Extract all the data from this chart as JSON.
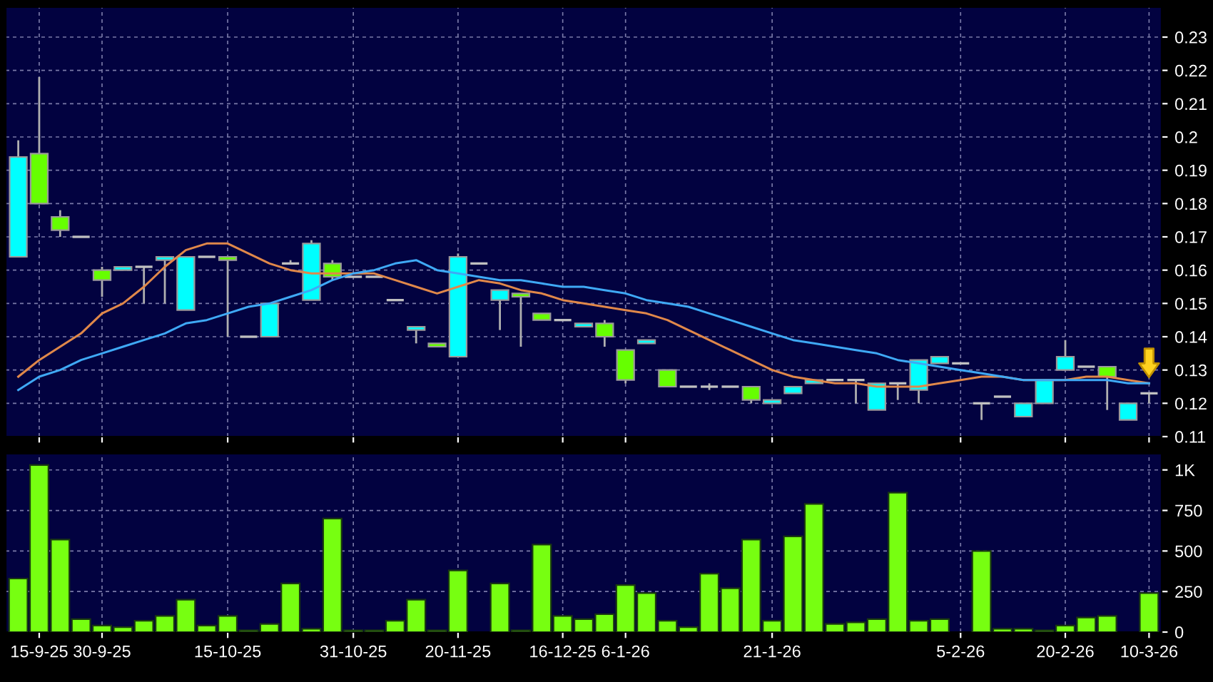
{
  "chart_data": [
    {
      "type": "candlestick",
      "categories": [
        null,
        null,
        null,
        null,
        null,
        null,
        null,
        null,
        null,
        null,
        null,
        null,
        null,
        null,
        null,
        null,
        null,
        null,
        null,
        null,
        null,
        null,
        null,
        null,
        null,
        null,
        null,
        null,
        null,
        null,
        null,
        null,
        null,
        null,
        null,
        null,
        null,
        null,
        null,
        null,
        null,
        null,
        null,
        null,
        null,
        null,
        null,
        null,
        null,
        null,
        null,
        null,
        null,
        null,
        null
      ],
      "ohlc": [
        [
          0.164,
          0.199,
          0.164,
          0.194
        ],
        [
          0.195,
          0.218,
          0.18,
          0.18
        ],
        [
          0.176,
          0.178,
          0.17,
          0.172
        ],
        [
          0.17,
          0.17,
          0.17,
          0.17
        ],
        [
          0.16,
          0.161,
          0.152,
          0.157
        ],
        [
          0.16,
          0.161,
          0.16,
          0.161
        ],
        [
          0.161,
          0.161,
          0.15,
          0.161
        ],
        [
          0.163,
          0.164,
          0.15,
          0.164
        ],
        [
          0.148,
          0.164,
          0.148,
          0.164
        ],
        [
          0.164,
          0.164,
          0.164,
          0.164
        ],
        [
          0.164,
          0.164,
          0.14,
          0.163
        ],
        [
          0.14,
          0.14,
          0.14,
          0.14
        ],
        [
          0.14,
          0.15,
          0.14,
          0.15
        ],
        [
          0.162,
          0.163,
          0.162,
          0.162
        ],
        [
          0.151,
          0.169,
          0.151,
          0.168
        ],
        [
          0.162,
          0.163,
          0.157,
          0.158
        ],
        [
          0.158,
          0.158,
          0.158,
          0.158
        ],
        [
          0.158,
          0.158,
          0.158,
          0.158
        ],
        [
          0.151,
          0.151,
          0.151,
          0.151
        ],
        [
          0.142,
          0.143,
          0.138,
          0.143
        ],
        [
          0.138,
          0.138,
          0.137,
          0.137
        ],
        [
          0.134,
          0.165,
          0.134,
          0.164
        ],
        [
          0.162,
          0.162,
          0.162,
          0.162
        ],
        [
          0.151,
          0.154,
          0.142,
          0.154
        ],
        [
          0.153,
          0.153,
          0.137,
          0.152
        ],
        [
          0.147,
          0.147,
          0.145,
          0.145
        ],
        [
          0.145,
          0.145,
          0.145,
          0.145
        ],
        [
          0.143,
          0.144,
          0.143,
          0.144
        ],
        [
          0.144,
          0.145,
          0.137,
          0.14
        ],
        [
          0.136,
          0.136,
          0.126,
          0.127
        ],
        [
          0.138,
          0.139,
          0.138,
          0.139
        ],
        [
          0.13,
          0.13,
          0.125,
          0.125
        ],
        [
          0.125,
          0.125,
          0.125,
          0.125
        ],
        [
          0.125,
          0.126,
          0.124,
          0.125
        ],
        [
          0.125,
          0.125,
          0.125,
          0.125
        ],
        [
          0.125,
          0.125,
          0.12,
          0.121
        ],
        [
          0.12,
          0.121,
          0.12,
          0.121
        ],
        [
          0.123,
          0.125,
          0.123,
          0.125
        ],
        [
          0.126,
          0.127,
          0.126,
          0.127
        ],
        [
          0.127,
          0.127,
          0.127,
          0.127
        ],
        [
          0.127,
          0.127,
          0.12,
          0.127
        ],
        [
          0.118,
          0.126,
          0.118,
          0.126
        ],
        [
          0.126,
          0.126,
          0.121,
          0.126
        ],
        [
          0.124,
          0.133,
          0.12,
          0.133
        ],
        [
          0.132,
          0.134,
          0.132,
          0.134
        ],
        [
          0.132,
          0.132,
          0.132,
          0.132
        ],
        [
          0.12,
          0.12,
          0.115,
          0.12
        ],
        [
          0.122,
          0.122,
          0.122,
          0.122
        ],
        [
          0.116,
          0.12,
          0.116,
          0.12
        ],
        [
          0.12,
          0.127,
          0.12,
          0.127
        ],
        [
          0.13,
          0.139,
          0.13,
          0.134
        ],
        [
          0.131,
          0.131,
          0.131,
          0.131
        ],
        [
          0.131,
          0.131,
          0.118,
          0.128
        ],
        [
          0.115,
          0.12,
          0.115,
          0.12
        ],
        [
          0.123,
          0.123,
          0.12,
          0.123
        ]
      ],
      "colors": [
        "#00ffff",
        "#66ff00",
        "#66ff00",
        "#c0c0c0",
        "#66ff00",
        "#00ffff",
        "#c0c0c0",
        "#00ffff",
        "#00ffff",
        "#c0c0c0",
        "#66ff00",
        "#c0c0c0",
        "#00ffff",
        "#c0c0c0",
        "#00ffff",
        "#66ff00",
        "#c0c0c0",
        "#c0c0c0",
        "#c0c0c0",
        "#00ffff",
        "#66ff00",
        "#00ffff",
        "#c0c0c0",
        "#00ffff",
        "#66ff00",
        "#66ff00",
        "#c0c0c0",
        "#00ffff",
        "#66ff00",
        "#66ff00",
        "#00ffff",
        "#66ff00",
        "#c0c0c0",
        "#c0c0c0",
        "#c0c0c0",
        "#66ff00",
        "#00ffff",
        "#00ffff",
        "#00ffff",
        "#c0c0c0",
        "#c0c0c0",
        "#00ffff",
        "#c0c0c0",
        "#00ffff",
        "#00ffff",
        "#c0c0c0",
        "#c0c0c0",
        "#c0c0c0",
        "#00ffff",
        "#00ffff",
        "#00ffff",
        "#c0c0c0",
        "#66ff00",
        "#00ffff",
        "#c0c0c0"
      ],
      "series": [
        {
          "type": "line",
          "color": "#e0884a",
          "values": [
            0.128,
            0.133,
            0.137,
            0.141,
            0.147,
            0.15,
            0.155,
            0.161,
            0.166,
            0.168,
            0.168,
            0.165,
            0.162,
            0.16,
            0.159,
            0.159,
            0.159,
            0.159,
            0.157,
            0.155,
            0.153,
            0.155,
            0.157,
            0.156,
            0.154,
            0.153,
            0.151,
            0.15,
            0.149,
            0.148,
            0.147,
            0.145,
            0.142,
            0.139,
            0.136,
            0.133,
            0.13,
            0.128,
            0.127,
            0.126,
            0.126,
            0.125,
            0.125,
            0.125,
            0.126,
            0.127,
            0.128,
            0.128,
            0.127,
            0.127,
            0.127,
            0.128,
            0.128,
            0.127,
            0.126
          ]
        },
        {
          "type": "line",
          "color": "#3fa9f5",
          "values": [
            0.124,
            0.128,
            0.13,
            0.133,
            0.135,
            0.137,
            0.139,
            0.141,
            0.144,
            0.145,
            0.147,
            0.149,
            0.15,
            0.152,
            0.154,
            0.157,
            0.159,
            0.16,
            0.162,
            0.163,
            0.16,
            0.159,
            0.158,
            0.157,
            0.157,
            0.156,
            0.155,
            0.155,
            0.154,
            0.153,
            0.151,
            0.15,
            0.149,
            0.147,
            0.145,
            0.143,
            0.141,
            0.139,
            0.138,
            0.137,
            0.136,
            0.135,
            0.133,
            0.132,
            0.131,
            0.13,
            0.129,
            0.128,
            0.127,
            0.127,
            0.127,
            0.127,
            0.127,
            0.126,
            0.126
          ]
        }
      ],
      "ylim": [
        0.11,
        0.239
      ],
      "yticks": [
        0.11,
        0.12,
        0.13,
        0.14,
        0.15,
        0.16,
        0.17,
        0.18,
        0.19,
        0.2,
        0.21,
        0.22,
        0.23
      ],
      "grid": true,
      "tick_labels": "y"
    },
    {
      "type": "bar",
      "categories": [
        null,
        "15-9-25",
        null,
        null,
        "30-9-25",
        null,
        null,
        null,
        null,
        null,
        "15-10-25",
        null,
        null,
        null,
        null,
        null,
        "31-10-25",
        null,
        null,
        null,
        null,
        "20-11-25",
        null,
        null,
        null,
        null,
        "16-12-25",
        null,
        null,
        "6-1-26",
        null,
        null,
        null,
        null,
        null,
        null,
        "21-1-26",
        null,
        null,
        null,
        null,
        null,
        null,
        null,
        null,
        "5-2-26",
        null,
        null,
        null,
        null,
        "20-2-26",
        null,
        null,
        null,
        "10-3-26"
      ],
      "values": [
        330,
        1030,
        570,
        80,
        40,
        30,
        70,
        100,
        200,
        40,
        100,
        10,
        50,
        300,
        20,
        700,
        10,
        10,
        70,
        200,
        10,
        380,
        0,
        300,
        10,
        540,
        100,
        80,
        110,
        290,
        240,
        70,
        30,
        360,
        270,
        570,
        70,
        590,
        790,
        50,
        60,
        80,
        860,
        70,
        80,
        null,
        500,
        20,
        20,
        10,
        40,
        90,
        100,
        0,
        240
      ],
      "color": "#77ff11",
      "ylim": [
        0,
        1100
      ],
      "yticks": [
        0,
        250,
        500,
        750,
        {
          "value": 1000,
          "label": "1K"
        }
      ],
      "grid": true
    }
  ]
}
